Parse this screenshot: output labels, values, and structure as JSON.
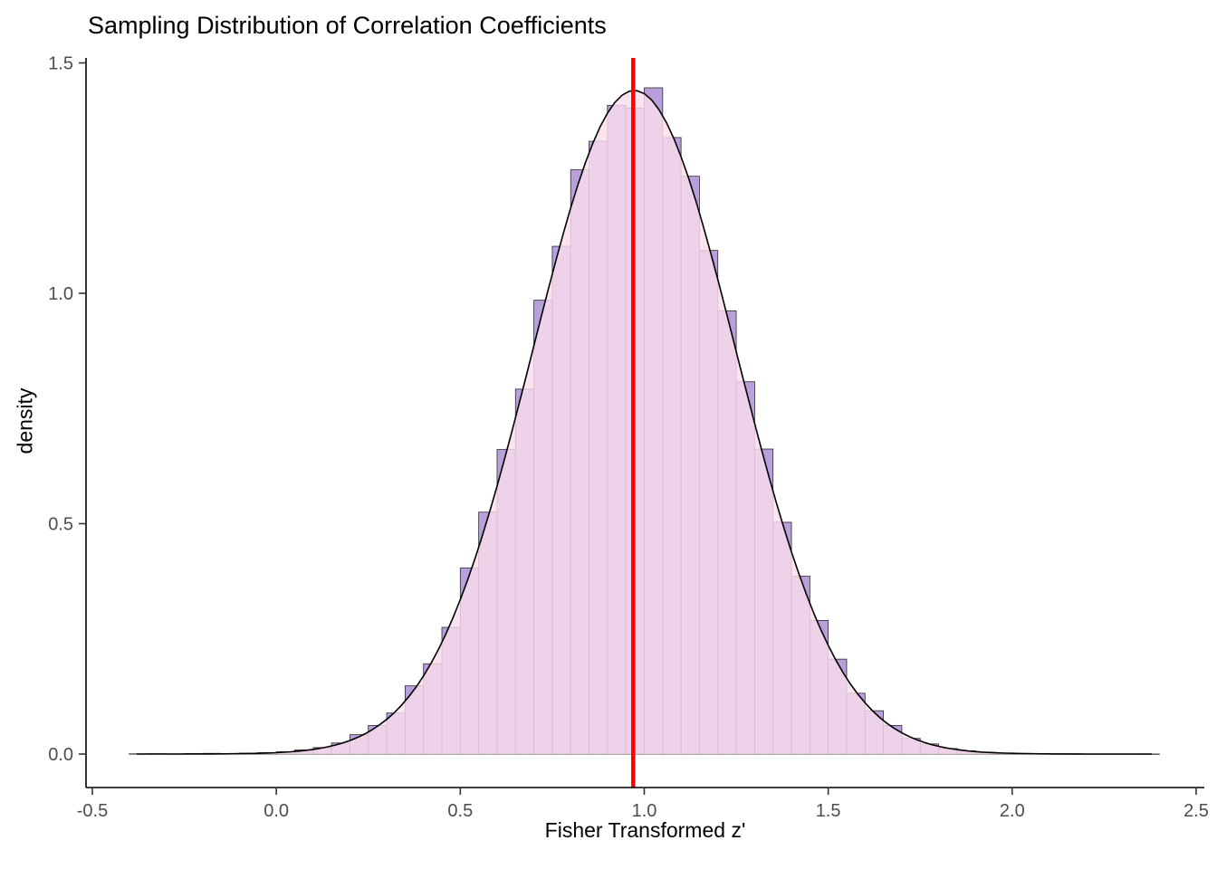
{
  "chart_data": {
    "type": "bar",
    "subtype": "histogram_with_density_overlay",
    "title": "Sampling Distribution of Correlation Coefficients",
    "xlabel": "Fisher Transformed z'",
    "ylabel": "density",
    "xlim": [
      -0.5,
      2.5
    ],
    "ylim": [
      0,
      1.5
    ],
    "x_ticks": [
      -0.5,
      0.0,
      0.5,
      1.0,
      1.5,
      2.0,
      2.5
    ],
    "x_tick_labels": [
      "-0.5",
      "0.0",
      "0.5",
      "1.0",
      "1.5",
      "2.0",
      "2.5"
    ],
    "y_ticks": [
      0.0,
      0.5,
      1.0,
      1.5
    ],
    "y_tick_labels": [
      "0.0",
      "0.5",
      "1.0",
      "1.5"
    ],
    "grid": false,
    "legend": "none",
    "bin_width": 0.05,
    "bin_centers": [
      -0.375,
      -0.325,
      -0.275,
      -0.225,
      -0.175,
      -0.125,
      -0.075,
      -0.025,
      0.025,
      0.075,
      0.125,
      0.175,
      0.225,
      0.275,
      0.325,
      0.375,
      0.425,
      0.475,
      0.525,
      0.575,
      0.625,
      0.675,
      0.725,
      0.775,
      0.825,
      0.875,
      0.925,
      0.975,
      1.025,
      1.075,
      1.125,
      1.175,
      1.225,
      1.275,
      1.325,
      1.375,
      1.425,
      1.475,
      1.525,
      1.575,
      1.625,
      1.675,
      1.725,
      1.775,
      1.825,
      1.875,
      1.925,
      1.975,
      2.025,
      2.075,
      2.125,
      2.175,
      2.225,
      2.275,
      2.325,
      2.375
    ],
    "bin_densities": [
      0.0005,
      0.0008,
      0.0005,
      0.001,
      0.0015,
      0.001,
      0.002,
      0.003,
      0.005,
      0.009,
      0.014,
      0.024,
      0.042,
      0.062,
      0.089,
      0.148,
      0.196,
      0.275,
      0.404,
      0.525,
      0.661,
      0.792,
      0.985,
      1.102,
      1.268,
      1.33,
      1.408,
      1.402,
      1.446,
      1.338,
      1.254,
      1.093,
      0.962,
      0.808,
      0.662,
      0.503,
      0.386,
      0.29,
      0.206,
      0.132,
      0.094,
      0.062,
      0.034,
      0.022,
      0.012,
      0.007,
      0.004,
      0.002,
      0.0012,
      0.0006,
      0.0004,
      0.0003,
      0.0002,
      0.0001,
      0.0001,
      5e-05
    ],
    "density_curve": {
      "mean": 0.973,
      "sd": 0.277,
      "x_range": [
        -0.38,
        2.38
      ]
    },
    "vline_x": 0.97,
    "colors": {
      "bar_fill": "#B9A0DC",
      "bar_stroke": "#2B2B2B",
      "density_fill": "#FADDEB",
      "density_fill_opacity": 0.82,
      "curve_stroke": "#000000",
      "vline": "#FF0000",
      "axis": "#000000",
      "tick_label": "#4D4D4D"
    }
  }
}
